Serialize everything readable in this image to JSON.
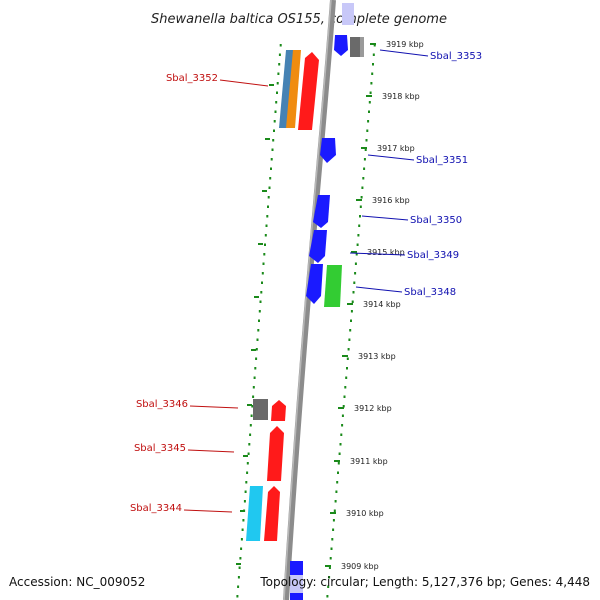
{
  "title": "Shewanella baltica OS155, complete genome",
  "accession": "Accession: NC_009052",
  "topology": "Topology: circular; Length: 5,127,376 bp; Genes: 4,448",
  "colors": {
    "backbone": "#8c8c8c",
    "dots": "#1a8a1a",
    "right_label": "#1010b0",
    "left_label": "#c01010",
    "blue": "#1a1aff",
    "red": "#ff1a1a",
    "green": "#33cc33",
    "gray": "#6a6a6a",
    "orange": "#f08c10",
    "steelblue": "#4682b4",
    "cyan": "#20c8f0"
  },
  "ticks": [
    {
      "label": "3919 kbp"
    },
    {
      "label": "3918 kbp"
    },
    {
      "label": "3917 kbp"
    },
    {
      "label": "3916 kbp"
    },
    {
      "label": "3915 kbp"
    },
    {
      "label": "3914 kbp"
    },
    {
      "label": "3913 kbp"
    },
    {
      "label": "3912 kbp"
    },
    {
      "label": "3911 kbp"
    },
    {
      "label": "3910 kbp"
    },
    {
      "label": "3909 kbp"
    }
  ],
  "labels_right": [
    {
      "name": "Sbal_3353"
    },
    {
      "name": "Sbal_3351"
    },
    {
      "name": "Sbal_3350"
    },
    {
      "name": "Sbal_3349"
    },
    {
      "name": "Sbal_3348"
    }
  ],
  "labels_left": [
    {
      "name": "Sbal_3352"
    },
    {
      "name": "Sbal_3346"
    },
    {
      "name": "Sbal_3345"
    },
    {
      "name": "Sbal_3344"
    }
  ]
}
